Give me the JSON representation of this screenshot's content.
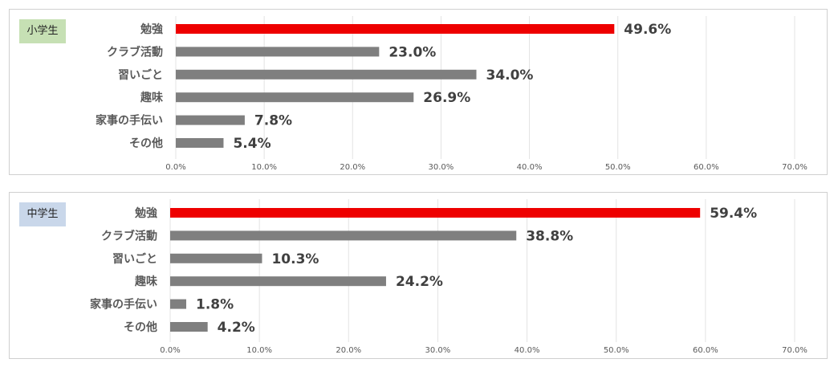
{
  "chart_data": [
    {
      "type": "bar",
      "orientation": "horizontal",
      "panel_label": "小学生",
      "categories": [
        "勉強",
        "クラブ活動",
        "習いごと",
        "趣味",
        "家事の手伝い",
        "その他"
      ],
      "values": [
        49.6,
        23.0,
        34.0,
        26.9,
        7.8,
        5.4
      ],
      "value_labels": [
        "49.6%",
        "23.0%",
        "34.0%",
        "26.9%",
        "7.8%",
        "5.4%"
      ],
      "xlim": [
        0,
        70
      ],
      "x_ticks": [
        "0.0%",
        "10.0%",
        "20.0%",
        "30.0%",
        "40.0%",
        "50.0%",
        "60.0%",
        "70.0%"
      ],
      "grid": true,
      "colors": {
        "highlight": "#ee0000",
        "bar": "#7f7f7f",
        "badge": "#c6e0b4"
      }
    },
    {
      "type": "bar",
      "orientation": "horizontal",
      "panel_label": "中学生",
      "categories": [
        "勉強",
        "クラブ活動",
        "習いごと",
        "趣味",
        "家事の手伝い",
        "その他"
      ],
      "values": [
        59.4,
        38.8,
        10.3,
        24.2,
        1.8,
        4.2
      ],
      "value_labels": [
        "59.4%",
        "38.8%",
        "10.3%",
        "24.2%",
        "1.8%",
        "4.2%"
      ],
      "xlim": [
        0,
        70
      ],
      "x_ticks": [
        "0.0%",
        "10.0%",
        "20.0%",
        "30.0%",
        "40.0%",
        "50.0%",
        "60.0%",
        "70.0%"
      ],
      "grid": true,
      "colors": {
        "highlight": "#ee0000",
        "bar": "#7f7f7f",
        "badge": "#c9d7ea"
      }
    }
  ]
}
